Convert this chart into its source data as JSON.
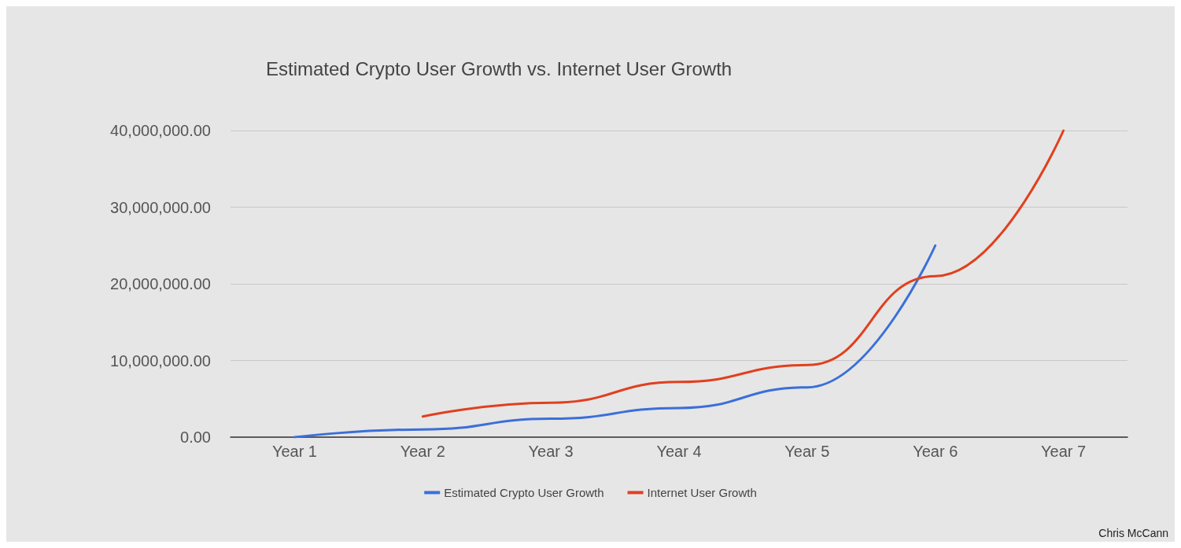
{
  "chart_data": {
    "type": "line",
    "title": "Estimated Crypto User Growth vs. Internet User Growth",
    "categories": [
      "Year 1",
      "Year 2",
      "Year 3",
      "Year 4",
      "Year 5",
      "Year 6",
      "Year 7"
    ],
    "series": [
      {
        "name": "Estimated Crypto User Growth",
        "color": "#3b6fd9",
        "values": [
          0,
          1000000,
          2400000,
          3800000,
          6500000,
          25000000,
          null
        ]
      },
      {
        "name": "Internet User Growth",
        "color": "#e0401f",
        "values": [
          null,
          2700000,
          4500000,
          7200000,
          9400000,
          21000000,
          40000000
        ]
      }
    ],
    "ylim": [
      0,
      40000000
    ],
    "yticks": [
      {
        "value": 0,
        "label": "0.00"
      },
      {
        "value": 10000000,
        "label": "10,000,000.00"
      },
      {
        "value": 20000000,
        "label": "20,000,000.00"
      },
      {
        "value": 30000000,
        "label": "30,000,000.00"
      },
      {
        "value": 40000000,
        "label": "40,000,000.00"
      }
    ],
    "grid": "y",
    "legend": "bottom",
    "marker": "none",
    "line_style": "solid",
    "annotations": [
      "Chris McCann"
    ]
  }
}
